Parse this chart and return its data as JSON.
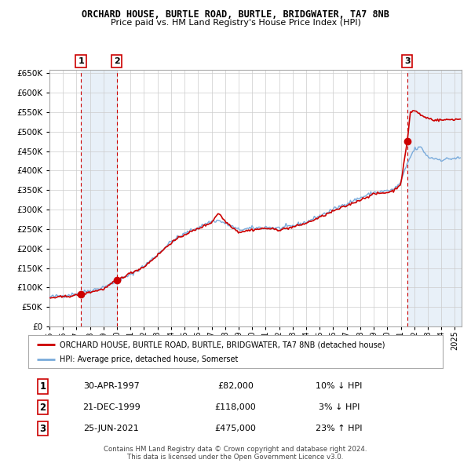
{
  "title": "ORCHARD HOUSE, BURTLE ROAD, BURTLE, BRIDGWATER, TA7 8NB",
  "subtitle": "Price paid vs. HM Land Registry's House Price Index (HPI)",
  "transactions": [
    {
      "label": "1",
      "date": "30-APR-1997",
      "price": 82000,
      "pct": "10%",
      "dir": "↓",
      "x_year": 1997.33
    },
    {
      "label": "2",
      "date": "21-DEC-1999",
      "price": 118000,
      "pct": "3%",
      "dir": "↓",
      "x_year": 1999.97
    },
    {
      "label": "3",
      "date": "25-JUN-2021",
      "price": 475000,
      "pct": "23%",
      "dir": "↑",
      "x_year": 2021.48
    }
  ],
  "legend_house": "ORCHARD HOUSE, BURTLE ROAD, BURTLE, BRIDGWATER, TA7 8NB (detached house)",
  "legend_hpi": "HPI: Average price, detached house, Somerset",
  "footer1": "Contains HM Land Registry data © Crown copyright and database right 2024.",
  "footer2": "This data is licensed under the Open Government Licence v3.0.",
  "house_color": "#cc0000",
  "hpi_color": "#7aabdb",
  "background_color": "#ffffff",
  "shade_color": "#e8f0f8",
  "ylim": [
    0,
    660000
  ],
  "yticks": [
    0,
    50000,
    100000,
    150000,
    200000,
    250000,
    300000,
    350000,
    400000,
    450000,
    500000,
    550000,
    600000,
    650000
  ],
  "xmin": 1995.0,
  "xmax": 2025.5
}
